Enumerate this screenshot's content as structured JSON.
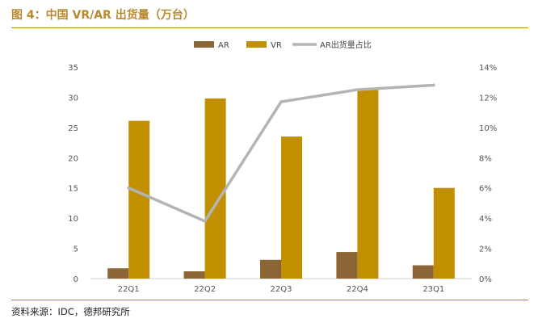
{
  "page": {
    "title": "图 4：中国 VR/AR 出货量（万台）",
    "source": "资料来源：IDC，德邦研究所"
  },
  "colors": {
    "accent": "#b8892e",
    "ar": "#8b6535",
    "vr": "#c28f00",
    "line": "#b4b4b4"
  },
  "chart_data": {
    "type": "bar",
    "title": "中国 VR/AR 出货量（万台）",
    "categories": [
      "22Q1",
      "22Q2",
      "22Q3",
      "22Q4",
      "23Q1"
    ],
    "series": [
      {
        "name": "AR",
        "kind": "bar",
        "axis": "left",
        "values": [
          1.7,
          1.2,
          3.1,
          4.4,
          2.2
        ]
      },
      {
        "name": "VR",
        "kind": "bar",
        "axis": "left",
        "values": [
          26.1,
          29.8,
          23.5,
          31.2,
          15.0
        ]
      },
      {
        "name": "AR出货量占比",
        "kind": "line",
        "axis": "right",
        "values": [
          6.0,
          3.8,
          11.7,
          12.5,
          12.8
        ]
      }
    ],
    "ylim": [
      0,
      35
    ],
    "yticks": [
      "0",
      "5",
      "10",
      "15",
      "20",
      "25",
      "30",
      "35"
    ],
    "y2lim": [
      0,
      14
    ],
    "y2ticks": [
      "0%",
      "2%",
      "4%",
      "6%",
      "8%",
      "10%",
      "12%",
      "14%"
    ],
    "xlabel": "",
    "ylabel": "",
    "y2label": "",
    "legend_position": "top-center",
    "grid": false
  }
}
